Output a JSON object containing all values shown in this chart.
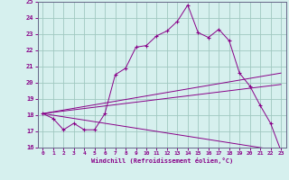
{
  "title": "",
  "xlabel": "Windchill (Refroidissement éolien,°C)",
  "xlim": [
    -0.5,
    23.5
  ],
  "ylim": [
    16,
    25
  ],
  "yticks": [
    16,
    17,
    18,
    19,
    20,
    21,
    22,
    23,
    24,
    25
  ],
  "xticks": [
    0,
    1,
    2,
    3,
    4,
    5,
    6,
    7,
    8,
    9,
    10,
    11,
    12,
    13,
    14,
    15,
    16,
    17,
    18,
    19,
    20,
    21,
    22,
    23
  ],
  "bg_color": "#d6f0ee",
  "line_color": "#880088",
  "grid_color": "#a0c8c0",
  "lines": [
    {
      "x": [
        0,
        1,
        2,
        3,
        4,
        5,
        6,
        7,
        8,
        9,
        10,
        11,
        12,
        13,
        14,
        15,
        16,
        17,
        18,
        19,
        20,
        21,
        22,
        23
      ],
      "y": [
        18.1,
        17.8,
        17.1,
        17.5,
        17.1,
        17.1,
        18.1,
        20.5,
        20.9,
        22.2,
        22.3,
        22.9,
        23.2,
        23.8,
        24.8,
        23.1,
        22.8,
        23.3,
        22.6,
        20.6,
        19.8,
        18.6,
        17.5,
        15.8
      ],
      "has_markers": true
    },
    {
      "x": [
        0,
        23
      ],
      "y": [
        18.1,
        15.8
      ],
      "has_markers": false
    },
    {
      "x": [
        0,
        23
      ],
      "y": [
        18.1,
        19.9
      ],
      "has_markers": false
    },
    {
      "x": [
        0,
        23
      ],
      "y": [
        18.1,
        20.6
      ],
      "has_markers": false
    }
  ]
}
